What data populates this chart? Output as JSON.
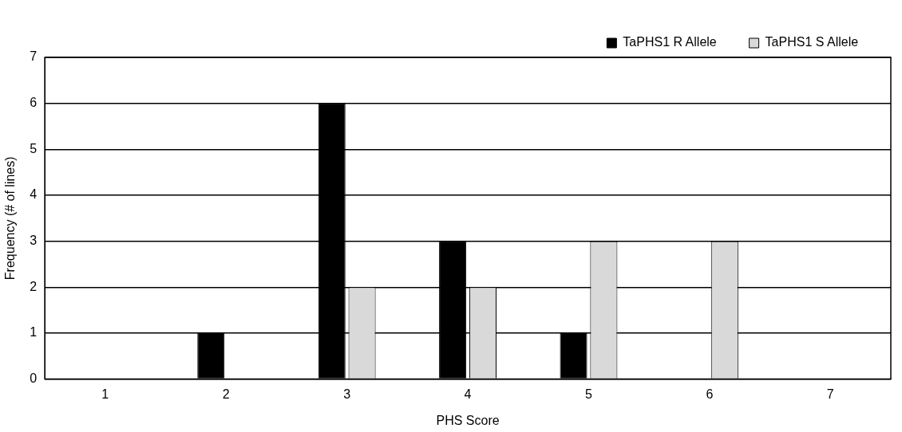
{
  "chart_data": {
    "type": "bar",
    "xlabel": "PHS Score",
    "ylabel": "Frequency (# of lines)",
    "categories": [
      "1",
      "2",
      "3",
      "4",
      "5",
      "6",
      "7"
    ],
    "series": [
      {
        "name": "TaPHS1 R Allele",
        "color": "#000000",
        "values": [
          0,
          1,
          6,
          3,
          1,
          0,
          0
        ]
      },
      {
        "name": "TaPHS1 S Allele",
        "color": "#d9d9d9",
        "values": [
          0,
          0,
          2,
          2,
          3,
          3,
          0
        ]
      }
    ],
    "ylim": [
      0,
      7
    ],
    "yticks": [
      0,
      1,
      2,
      3,
      4,
      5,
      6,
      7
    ],
    "grid": "y",
    "legend": "top right"
  }
}
